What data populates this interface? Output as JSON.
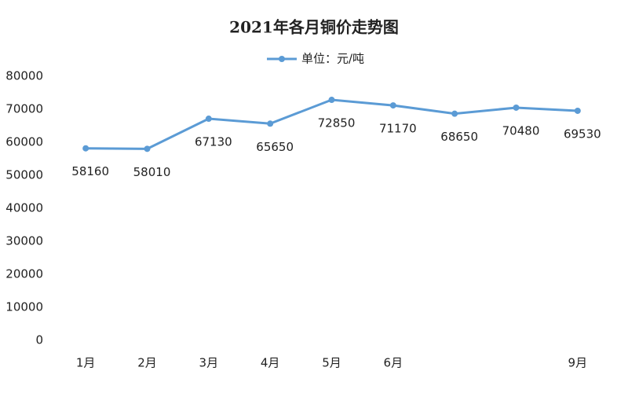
{
  "chart_data": {
    "type": "line",
    "title": "2021年各月铜价走势图",
    "categories": [
      "1月",
      "2月",
      "3月",
      "4月",
      "5月",
      "6月",
      null,
      null,
      "9月"
    ],
    "series": [
      {
        "name": "单位：元/吨",
        "color": "#5b9bd5",
        "values": [
          58160,
          58010,
          67130,
          65650,
          72850,
          71170,
          68650,
          70480,
          69530
        ]
      }
    ],
    "ylim": [
      0,
      80000
    ],
    "yticks": [
      0,
      10000,
      20000,
      30000,
      40000,
      50000,
      60000,
      70000,
      80000
    ],
    "grid": false,
    "legend": "top"
  }
}
